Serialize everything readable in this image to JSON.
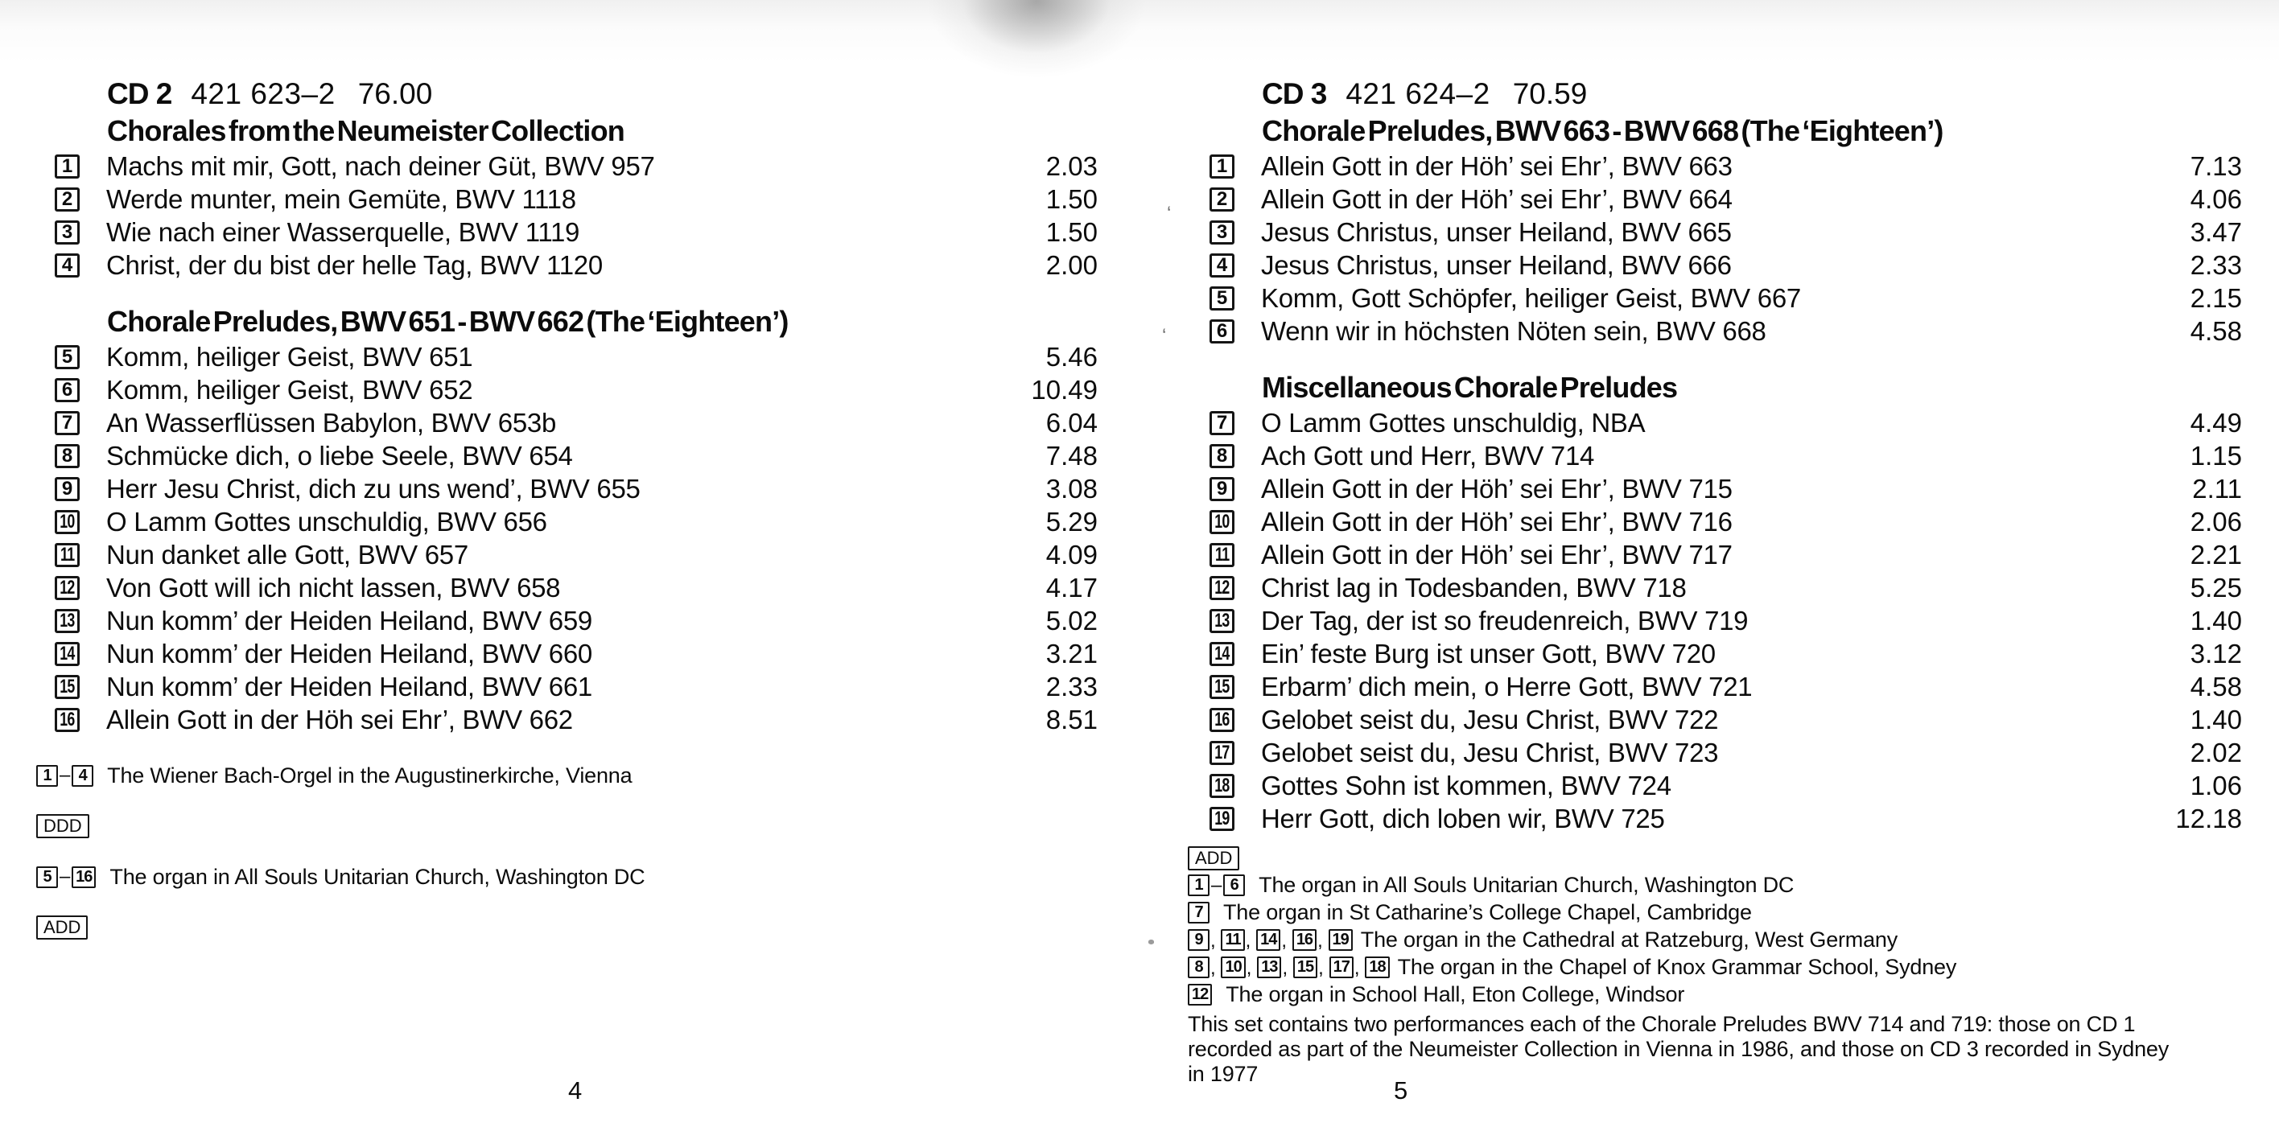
{
  "pages": [
    {
      "page_number": "4",
      "header": {
        "cd": "CD 2",
        "catalog": "421 623–2",
        "total_time": "76.00"
      },
      "sections": [
        {
          "heading": "Chorales from the Neumeister Collection",
          "tracks": [
            {
              "num": "1",
              "title": "Machs mit mir, Gott, nach deiner Güt, BWV 957",
              "time": "2.03"
            },
            {
              "num": "2",
              "title": "Werde munter, mein Gemüte, BWV 1118",
              "time": "1.50"
            },
            {
              "num": "3",
              "title": "Wie nach einer Wasserquelle, BWV 1119",
              "time": "1.50"
            },
            {
              "num": "4",
              "title": "Christ, der du bist der helle Tag, BWV 1120",
              "time": "2.00"
            }
          ]
        },
        {
          "heading": "Chorale Preludes, BWV 651 - BWV 662 (The ‘Eighteen’)",
          "tracks": [
            {
              "num": "5",
              "title": "Komm, heiliger Geist, BWV 651",
              "time": "5.46"
            },
            {
              "num": "6",
              "title": "Komm, heiliger Geist, BWV 652",
              "time": "10.49"
            },
            {
              "num": "7",
              "title": "An Wasserflüssen Babylon, BWV 653b",
              "time": "6.04"
            },
            {
              "num": "8",
              "title": "Schmücke dich, o liebe Seele, BWV 654",
              "time": "7.48"
            },
            {
              "num": "9",
              "title": "Herr Jesu Christ, dich zu uns wend’, BWV 655",
              "time": "3.08"
            },
            {
              "num": "10",
              "title": "O Lamm Gottes unschuldig, BWV 656",
              "time": "5.29"
            },
            {
              "num": "11",
              "title": "Nun danket alle Gott, BWV 657",
              "time": "4.09"
            },
            {
              "num": "12",
              "title": "Von Gott will ich nicht lassen, BWV 658",
              "time": "4.17"
            },
            {
              "num": "13",
              "title": "Nun komm’ der Heiden Heiland, BWV 659",
              "time": "5.02"
            },
            {
              "num": "14",
              "title": "Nun komm’ der Heiden Heiland, BWV 660",
              "time": "3.21"
            },
            {
              "num": "15",
              "title": "Nun komm’ der Heiden Heiland, BWV 661",
              "time": "2.33"
            },
            {
              "num": "16",
              "title": "Allein Gott in der Höh sei Ehr’, BWV 662",
              "time": "8.51"
            }
          ]
        }
      ],
      "footnotes": [
        {
          "markers": [
            {
              "t": "box",
              "v": "1"
            },
            {
              "t": "dash",
              "v": "–"
            },
            {
              "t": "box",
              "v": "4"
            }
          ],
          "text": "The Wiener Bach-Orgel in the Augustinerkirche, Vienna"
        },
        {
          "markers": [
            {
              "t": "wide",
              "v": "DDD"
            }
          ],
          "text": ""
        },
        {
          "markers": [
            {
              "t": "box",
              "v": "5"
            },
            {
              "t": "dash",
              "v": "–"
            },
            {
              "t": "box",
              "v": "16"
            }
          ],
          "text": "The organ in All Souls Unitarian Church, Washington DC"
        },
        {
          "markers": [
            {
              "t": "wide",
              "v": "ADD"
            }
          ],
          "text": ""
        }
      ],
      "note_lines": []
    },
    {
      "page_number": "5",
      "header": {
        "cd": "CD 3",
        "catalog": "421 624–2",
        "total_time": "70.59"
      },
      "sections": [
        {
          "heading": "Chorale Preludes, BWV 663 - BWV 668 (The ‘Eighteen’)",
          "tracks": [
            {
              "num": "1",
              "title": "Allein Gott in der Höh’ sei Ehr’, BWV 663",
              "time": "7.13"
            },
            {
              "num": "2",
              "title": "Allein Gott in der Höh’ sei Ehr’, BWV 664",
              "time": "4.06"
            },
            {
              "num": "3",
              "title": "Jesus Christus, unser Heiland, BWV 665",
              "time": "3.47"
            },
            {
              "num": "4",
              "title": "Jesus Christus, unser Heiland, BWV 666",
              "time": "2.33"
            },
            {
              "num": "5",
              "title": "Komm, Gott Schöpfer, heiliger Geist, BWV 667",
              "time": "2.15"
            },
            {
              "num": "6",
              "title": "Wenn wir in höchsten Nöten sein, BWV 668",
              "time": "4.58"
            }
          ]
        },
        {
          "heading": "Miscellaneous Chorale Preludes",
          "tracks": [
            {
              "num": "7",
              "title": "O Lamm Gottes unschuldig, NBA",
              "time": "4.49"
            },
            {
              "num": "8",
              "title": "Ach Gott und Herr, BWV 714",
              "time": "1.15"
            },
            {
              "num": "9",
              "title": "Allein Gott in der Höh’ sei Ehr’, BWV 715",
              "time": "2.11"
            },
            {
              "num": "10",
              "title": "Allein Gott in der Höh’ sei Ehr’, BWV 716",
              "time": "2.06"
            },
            {
              "num": "11",
              "title": "Allein Gott in der Höh’ sei Ehr’, BWV 717",
              "time": "2.21"
            },
            {
              "num": "12",
              "title": "Christ lag in Todesbanden, BWV 718",
              "time": "5.25"
            },
            {
              "num": "13",
              "title": "Der Tag, der ist so freudenreich, BWV 719",
              "time": "1.40"
            },
            {
              "num": "14",
              "title": "Ein’ feste Burg ist unser Gott, BWV 720",
              "time": "3.12"
            },
            {
              "num": "15",
              "title": "Erbarm’ dich mein, o Herre Gott, BWV 721",
              "time": "4.58"
            },
            {
              "num": "16",
              "title": "Gelobet seist du, Jesu Christ, BWV 722",
              "time": "1.40"
            },
            {
              "num": "17",
              "title": "Gelobet seist du, Jesu Christ, BWV 723",
              "time": "2.02"
            },
            {
              "num": "18",
              "title": "Gottes Sohn ist kommen, BWV 724",
              "time": "1.06"
            },
            {
              "num": "19",
              "title": "Herr Gott, dich loben wir, BWV 725",
              "time": "12.18"
            }
          ]
        }
      ],
      "footnotes": [
        {
          "markers": [
            {
              "t": "wide",
              "v": "ADD"
            }
          ],
          "text": ""
        },
        {
          "markers": [
            {
              "t": "box",
              "v": "1"
            },
            {
              "t": "dash",
              "v": "–"
            },
            {
              "t": "box",
              "v": "6"
            }
          ],
          "text": "The organ in All Souls Unitarian Church, Washington DC"
        },
        {
          "markers": [
            {
              "t": "box",
              "v": "7"
            }
          ],
          "text": "The organ in St Catharine’s College Chapel, Cambridge"
        },
        {
          "markers": [
            {
              "t": "box",
              "v": "9"
            },
            {
              "t": "comma",
              "v": ","
            },
            {
              "t": "box",
              "v": "11"
            },
            {
              "t": "comma",
              "v": ","
            },
            {
              "t": "box",
              "v": "14"
            },
            {
              "t": "comma",
              "v": ","
            },
            {
              "t": "box",
              "v": "16"
            },
            {
              "t": "comma",
              "v": ","
            },
            {
              "t": "box",
              "v": "19"
            }
          ],
          "text": "The organ in the Cathedral at Ratzeburg, West Germany",
          "tight": true
        },
        {
          "markers": [
            {
              "t": "box",
              "v": "8"
            },
            {
              "t": "comma",
              "v": ","
            },
            {
              "t": "box",
              "v": "10"
            },
            {
              "t": "comma",
              "v": ","
            },
            {
              "t": "box",
              "v": "13"
            },
            {
              "t": "comma",
              "v": ","
            },
            {
              "t": "box",
              "v": "15"
            },
            {
              "t": "comma",
              "v": ","
            },
            {
              "t": "box",
              "v": "17"
            },
            {
              "t": "comma",
              "v": ","
            },
            {
              "t": "box",
              "v": "18"
            }
          ],
          "text": "The organ in the Chapel of Knox Grammar School, Sydney",
          "tight": true
        },
        {
          "markers": [
            {
              "t": "box",
              "v": "12"
            }
          ],
          "text": "The organ in School Hall, Eton College, Windsor"
        }
      ],
      "note_lines": [
        "This set contains two performances each of the Chorale Preludes BWV 714 and 719: those on CD 1",
        "recorded as part of the Neumeister Collection in Vienna in 1986, and those on CD 3 recorded in Sydney",
        "in 1977"
      ]
    }
  ]
}
